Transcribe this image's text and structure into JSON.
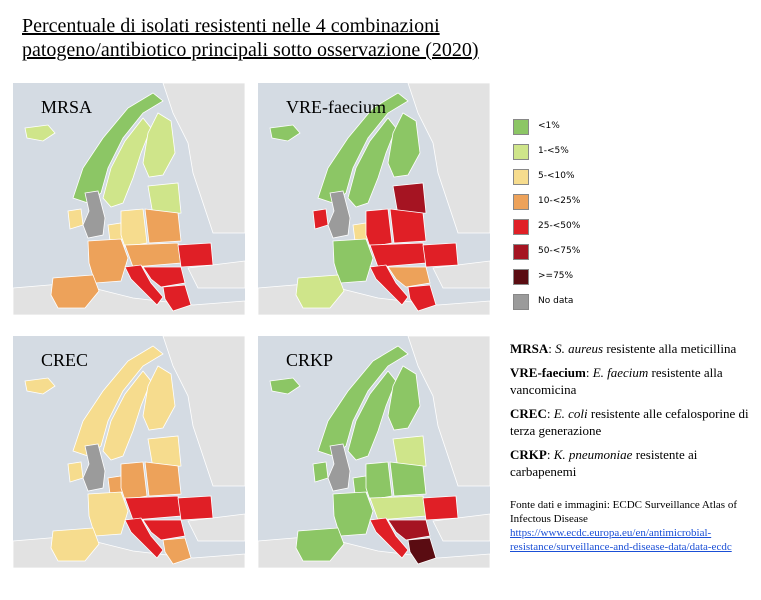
{
  "title": {
    "line1": "Percentuale di isolati resistenti nelle 4 combinazioni",
    "line2": "patogeno/antibiotico principali sotto osservazione (2020)"
  },
  "colors": {
    "c1": "#8cc665",
    "c2": "#cfe58a",
    "c3": "#f6dc8e",
    "c4": "#eda25a",
    "c5": "#e01f26",
    "c6": "#a51422",
    "c7": "#5a0c12",
    "nodata": "#9b9b9b",
    "sea": "#d4dbe3",
    "land": "#e2e2e2"
  },
  "maps": [
    {
      "label": "MRSA",
      "icon": "europe-map-icon",
      "regions": {
        "iceland": "c2",
        "uk": "nodata",
        "ireland": "c3",
        "norway": "c1",
        "sweden": "c2",
        "finland": "c2",
        "baltic": "c2",
        "poland": "c4",
        "germany": "c3",
        "france": "c4",
        "iberia": "c4",
        "italy": "c5",
        "balkan": "c5",
        "greece": "c5",
        "romania": "c5",
        "central": "c4",
        "benelux": "c3",
        "turkey": "land"
      }
    },
    {
      "label": "VRE-faecium",
      "icon": "europe-map-icon",
      "regions": {
        "iceland": "c1",
        "uk": "nodata",
        "ireland": "c5",
        "norway": "c1",
        "sweden": "c1",
        "finland": "c1",
        "baltic": "c6",
        "poland": "c5",
        "germany": "c5",
        "france": "c1",
        "iberia": "c2",
        "italy": "c5",
        "balkan": "c4",
        "greece": "c5",
        "romania": "c5",
        "central": "c5",
        "benelux": "c3",
        "turkey": "land"
      }
    },
    {
      "label": "CREC",
      "icon": "europe-map-icon",
      "regions": {
        "iceland": "c3",
        "uk": "nodata",
        "ireland": "c3",
        "norway": "c3",
        "sweden": "c3",
        "finland": "c3",
        "baltic": "c3",
        "poland": "c4",
        "germany": "c4",
        "france": "c3",
        "iberia": "c3",
        "italy": "c5",
        "balkan": "c5",
        "greece": "c4",
        "romania": "c5",
        "central": "c5",
        "benelux": "c4",
        "turkey": "land"
      }
    },
    {
      "label": "CRKP",
      "icon": "europe-map-icon",
      "regions": {
        "iceland": "c1",
        "uk": "nodata",
        "ireland": "c1",
        "norway": "c1",
        "sweden": "c1",
        "finland": "c1",
        "baltic": "c2",
        "poland": "c1",
        "germany": "c1",
        "france": "c1",
        "iberia": "c1",
        "italy": "c5",
        "balkan": "c6",
        "greece": "c7",
        "romania": "c5",
        "central": "c2",
        "benelux": "c1",
        "turkey": "land"
      }
    }
  ],
  "legend": [
    {
      "key": "c1",
      "label": "<1%"
    },
    {
      "key": "c2",
      "label": "1-<5%"
    },
    {
      "key": "c3",
      "label": "5-<10%"
    },
    {
      "key": "c4",
      "label": "10-<25%"
    },
    {
      "key": "c5",
      "label": "25-<50%"
    },
    {
      "key": "c6",
      "label": "50-<75%"
    },
    {
      "key": "c7",
      "label": ">=75%"
    },
    {
      "key": "nodata",
      "label": "No data"
    }
  ],
  "definitions": [
    {
      "abbr": "MRSA",
      "sep": ": ",
      "species": "S. aureus",
      "desc": " resistente alla meticillina"
    },
    {
      "abbr": "VRE-faecium",
      "sep": ": ",
      "species": "E. faecium",
      "desc": " resistente alla vancomicina"
    },
    {
      "abbr": "CREC",
      "sep": ": ",
      "species": "E. coli",
      "desc": " resistente alle cefalosporine di terza generazione"
    },
    {
      "abbr": "CRKP",
      "sep": ": ",
      "species": "K. pneumoniae",
      "desc": " resistente ai carbapenemi"
    }
  ],
  "source": {
    "text": "Fonte dati e immagini: ECDC Surveillance Atlas of Infectous Disease",
    "link1": "https://www.ecdc.europa.eu/en/antimicrobial-",
    "link2": "resistance/surveillance-and-disease-data/data-ecdc"
  }
}
